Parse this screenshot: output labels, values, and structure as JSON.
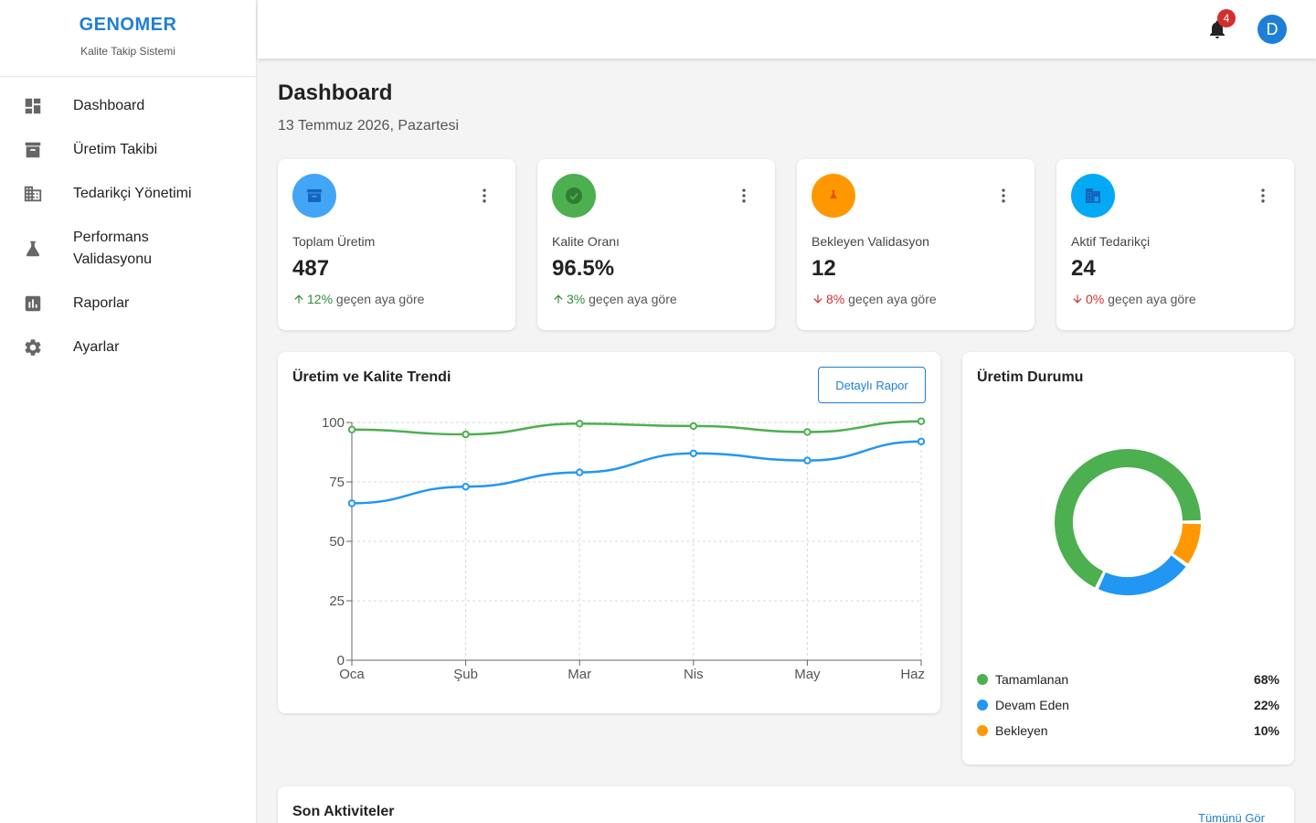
{
  "brand": {
    "title": "GENOMER",
    "subtitle": "Kalite Takip Sistemi"
  },
  "sidebar": {
    "items": [
      {
        "label": "Dashboard",
        "icon": "dashboard-icon"
      },
      {
        "label": "Üretim Takibi",
        "icon": "archive-icon"
      },
      {
        "label": "Tedarikçi Yönetimi",
        "icon": "building-icon"
      },
      {
        "label": "Performans Validasyonu",
        "icon": "flask-icon"
      },
      {
        "label": "Raporlar",
        "icon": "bar-chart-icon"
      },
      {
        "label": "Ayarlar",
        "icon": "gear-icon"
      }
    ]
  },
  "header": {
    "notification_count": "4",
    "avatar_initial": "D"
  },
  "page": {
    "title": "Dashboard",
    "date": "13 Temmuz 2026, Pazartesi"
  },
  "stats": [
    {
      "label": "Toplam Üretim",
      "value": "487",
      "change": "12%",
      "direction": "up",
      "suffix": "geçen aya göre",
      "color": "#42a5f5",
      "icon": "archive-icon"
    },
    {
      "label": "Kalite Oranı",
      "value": "96.5%",
      "change": "3%",
      "direction": "up",
      "suffix": "geçen aya göre",
      "color": "#4caf50",
      "icon": "check-circle-icon"
    },
    {
      "label": "Bekleyen Validasyon",
      "value": "12",
      "change": "8%",
      "direction": "down",
      "suffix": "geçen aya göre",
      "color": "#ff9800",
      "icon": "flask-icon"
    },
    {
      "label": "Aktif Tedarikçi",
      "value": "24",
      "change": "0%",
      "direction": "down",
      "suffix": "geçen aya göre",
      "color": "#03a9f4",
      "icon": "building-icon"
    }
  ],
  "trend": {
    "title": "Üretim ve Kalite Trendi",
    "button": "Detaylı Rapor"
  },
  "chart_data": [
    {
      "type": "line",
      "x": [
        "Oca",
        "Şub",
        "Mar",
        "Nis",
        "May",
        "Haz"
      ],
      "series": [
        {
          "values": [
            97,
            95,
            99.5,
            98.5,
            96,
            100.5
          ],
          "color": "#4caf50"
        },
        {
          "values": [
            66,
            73,
            79,
            87,
            84,
            92
          ],
          "color": "#2196f3"
        }
      ],
      "yticks": [
        0,
        25,
        50,
        75,
        100
      ],
      "ylim": [
        0,
        100
      ],
      "grid": true
    },
    {
      "type": "pie",
      "title": "Üretim Durumu",
      "categories": [
        "Tamamlanan",
        "Devam Eden",
        "Bekleyen"
      ],
      "values": [
        68,
        22,
        10
      ],
      "labels": [
        "68%",
        "22%",
        "10%"
      ],
      "colors": [
        "#4caf50",
        "#2196f3",
        "#ff9800"
      ]
    }
  ],
  "activity": {
    "title": "Son Aktiviteler",
    "link": "Tümünü Gör"
  }
}
